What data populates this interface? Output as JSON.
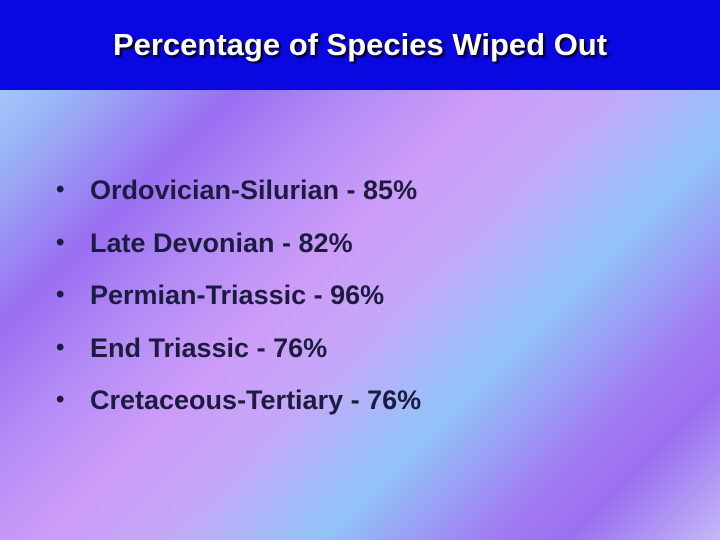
{
  "header": {
    "title": "Percentage of Species Wiped Out"
  },
  "bullets": [
    "Ordovician-Silurian - 85%",
    "Late Devonian - 82%",
    "Permian-Triassic - 96%",
    "End Triassic - 76%",
    "Cretaceous-Tertiary - 76%"
  ]
}
